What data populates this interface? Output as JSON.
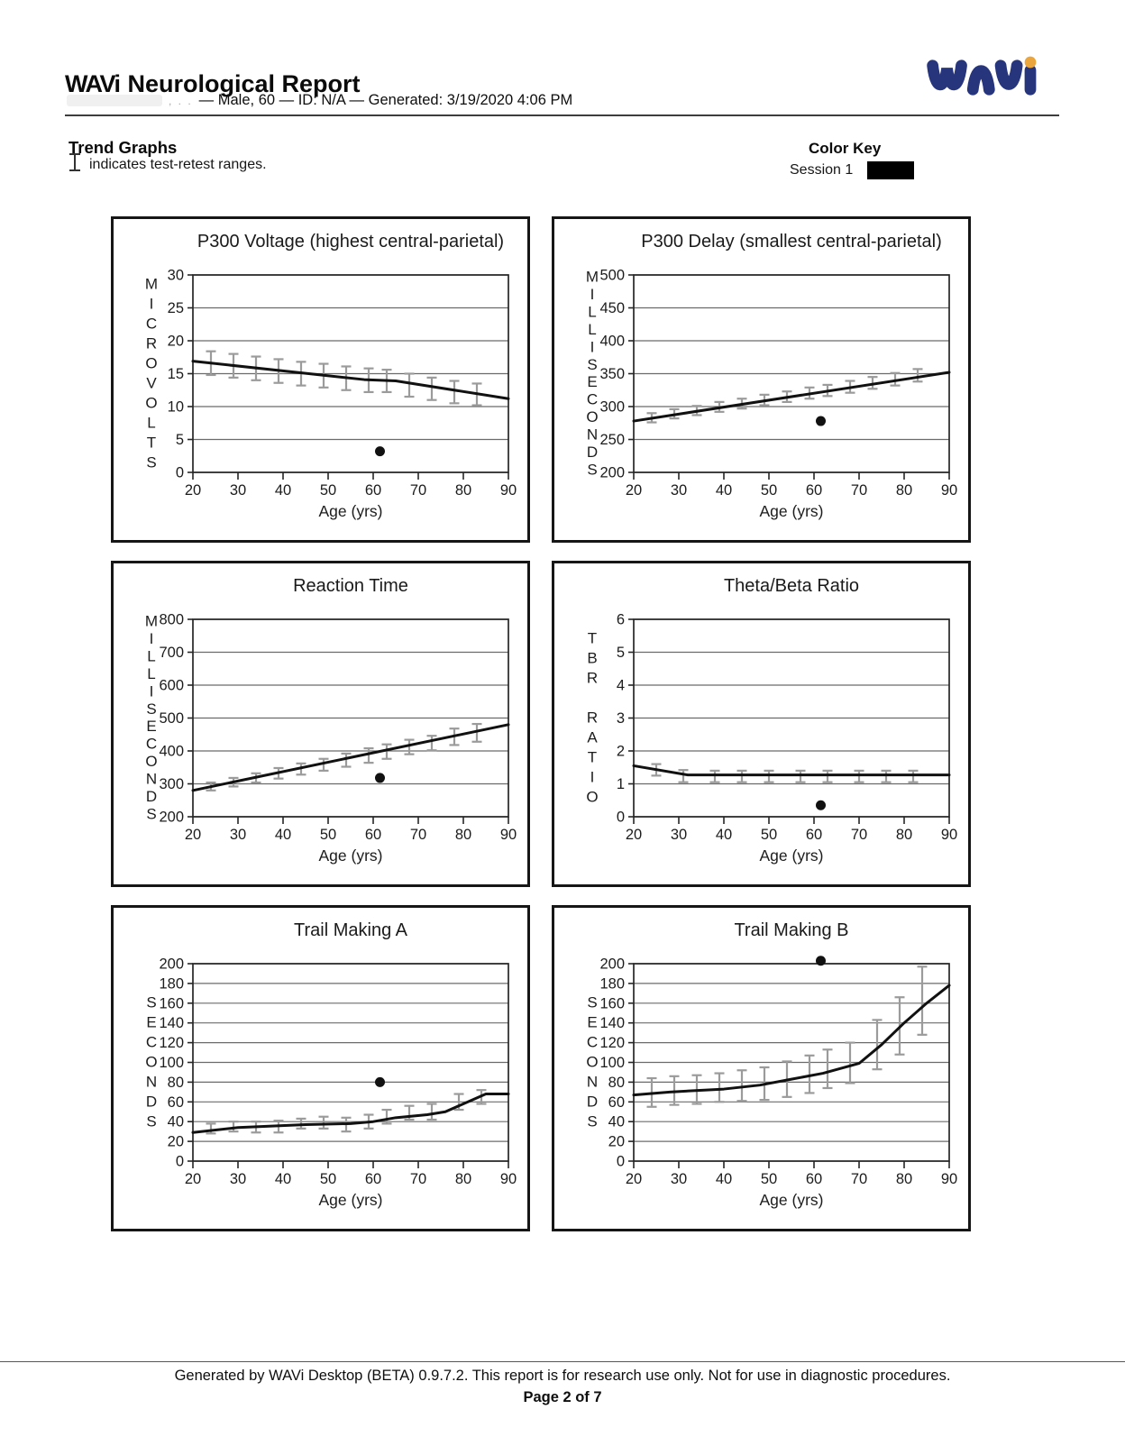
{
  "header": {
    "brand": "WAVi",
    "title": "Neurological Report",
    "redacted_hint": ", . .",
    "patient_line": "— Male, 60 — ID: N/A — Generated: 3/19/2020 4:06 PM"
  },
  "trend_graphs": {
    "heading": "Trend Graphs",
    "legend_note": "indicates test-retest ranges."
  },
  "color_key": {
    "heading": "Color Key",
    "session_label": "Session 1",
    "session_color": "#000000"
  },
  "colors": {
    "trend_line": "#111111",
    "error_bar": "#9b9b9b",
    "grid": "#6b6b6b",
    "axis": "#262626",
    "logo_navy": "#27357c",
    "logo_orange": "#eaa63c"
  },
  "chart_data": [
    {
      "type": "line",
      "title": "P300 Voltage (highest central-parietal)",
      "xlabel": "Age (yrs)",
      "ylabel": "MICROVOLTS",
      "xlim": [
        20,
        90
      ],
      "xticks": [
        20,
        30,
        40,
        50,
        60,
        70,
        80,
        90
      ],
      "ylim": [
        0,
        30
      ],
      "yticks": [
        0,
        5,
        10,
        15,
        20,
        25,
        30
      ],
      "trend": [
        [
          20,
          16.9
        ],
        [
          58,
          14.1
        ],
        [
          65,
          13.9
        ],
        [
          90,
          11.2
        ]
      ],
      "error_bars": [
        [
          24,
          14.8,
          18.4
        ],
        [
          29,
          14.4,
          18.0
        ],
        [
          34,
          14.0,
          17.6
        ],
        [
          39,
          13.6,
          17.2
        ],
        [
          44,
          13.2,
          16.8
        ],
        [
          49,
          12.9,
          16.5
        ],
        [
          54,
          12.5,
          16.1
        ],
        [
          59,
          12.2,
          15.8
        ],
        [
          63,
          12.2,
          15.6
        ],
        [
          68,
          11.5,
          15.0
        ],
        [
          73,
          11.0,
          14.4
        ],
        [
          78,
          10.5,
          13.9
        ],
        [
          83,
          10.2,
          13.5
        ]
      ],
      "session1_point": [
        61.5,
        3.2
      ]
    },
    {
      "type": "line",
      "title": "P300 Delay (smallest central-parietal)",
      "xlabel": "Age (yrs)",
      "ylabel": "MILLISECONDS",
      "xlim": [
        20,
        90
      ],
      "xticks": [
        20,
        30,
        40,
        50,
        60,
        70,
        80,
        90
      ],
      "ylim": [
        200,
        500
      ],
      "yticks": [
        200,
        250,
        300,
        350,
        400,
        450,
        500
      ],
      "trend": [
        [
          20,
          278
        ],
        [
          90,
          352
        ]
      ],
      "error_bars": [
        [
          24,
          276,
          290
        ],
        [
          29,
          282,
          296
        ],
        [
          34,
          287,
          301
        ],
        [
          39,
          292,
          307
        ],
        [
          44,
          297,
          312
        ],
        [
          49,
          302,
          318
        ],
        [
          54,
          307,
          323
        ],
        [
          59,
          312,
          329
        ],
        [
          63,
          316,
          333
        ],
        [
          68,
          321,
          339
        ],
        [
          73,
          327,
          345
        ],
        [
          78,
          332,
          351
        ],
        [
          83,
          338,
          357
        ]
      ],
      "session1_point": [
        61.5,
        278
      ]
    },
    {
      "type": "line",
      "title": "Reaction Time",
      "xlabel": "Age (yrs)",
      "ylabel": "MILLISECONDS",
      "xlim": [
        20,
        90
      ],
      "xticks": [
        20,
        30,
        40,
        50,
        60,
        70,
        80,
        90
      ],
      "ylim": [
        200,
        800
      ],
      "yticks": [
        200,
        300,
        400,
        500,
        600,
        700,
        800
      ],
      "trend": [
        [
          20,
          280
        ],
        [
          90,
          480
        ]
      ],
      "error_bars": [
        [
          24,
          280,
          304
        ],
        [
          29,
          292,
          318
        ],
        [
          34,
          304,
          332
        ],
        [
          39,
          316,
          348
        ],
        [
          44,
          328,
          362
        ],
        [
          49,
          340,
          376
        ],
        [
          54,
          352,
          392
        ],
        [
          59,
          364,
          408
        ],
        [
          63,
          376,
          420
        ],
        [
          68,
          390,
          434
        ],
        [
          73,
          402,
          446
        ],
        [
          78,
          418,
          468
        ],
        [
          83,
          428,
          482
        ]
      ],
      "session1_point": [
        61.5,
        318
      ]
    },
    {
      "type": "line",
      "title": "Theta/Beta Ratio",
      "xlabel": "Age (yrs)",
      "ylabel": "TBR RATIO",
      "xlim": [
        20,
        90
      ],
      "xticks": [
        20,
        30,
        40,
        50,
        60,
        70,
        80,
        90
      ],
      "ylim": [
        0,
        6
      ],
      "yticks": [
        0,
        1,
        2,
        3,
        4,
        5,
        6
      ],
      "trend": [
        [
          20,
          1.55
        ],
        [
          32,
          1.27
        ],
        [
          90,
          1.27
        ]
      ],
      "error_bars": [
        [
          25,
          1.25,
          1.6
        ],
        [
          31,
          1.05,
          1.42
        ],
        [
          38,
          1.05,
          1.4
        ],
        [
          44,
          1.05,
          1.4
        ],
        [
          50,
          1.05,
          1.4
        ],
        [
          57,
          1.05,
          1.4
        ],
        [
          63,
          1.05,
          1.4
        ],
        [
          70,
          1.05,
          1.4
        ],
        [
          76,
          1.05,
          1.4
        ],
        [
          82,
          1.05,
          1.4
        ]
      ],
      "session1_point": [
        61.5,
        0.35
      ]
    },
    {
      "type": "line",
      "title": "Trail Making A",
      "xlabel": "Age (yrs)",
      "ylabel": "SECONDS",
      "xlim": [
        20,
        90
      ],
      "xticks": [
        20,
        30,
        40,
        50,
        60,
        70,
        80,
        90
      ],
      "ylim": [
        0,
        200
      ],
      "yticks": [
        0,
        20,
        40,
        60,
        80,
        100,
        120,
        140,
        160,
        180,
        200
      ],
      "trend": [
        [
          20,
          29
        ],
        [
          30,
          34
        ],
        [
          45,
          37
        ],
        [
          55,
          38
        ],
        [
          60,
          40
        ],
        [
          65,
          44
        ],
        [
          72,
          47
        ],
        [
          76,
          50
        ],
        [
          85,
          68
        ],
        [
          90,
          68
        ]
      ],
      "error_bars": [
        [
          24,
          28,
          38
        ],
        [
          29,
          30,
          40
        ],
        [
          34,
          29,
          40
        ],
        [
          39,
          29,
          41
        ],
        [
          44,
          33,
          43
        ],
        [
          49,
          33,
          45
        ],
        [
          54,
          30,
          44
        ],
        [
          59,
          33,
          47
        ],
        [
          63,
          38,
          52
        ],
        [
          68,
          42,
          56
        ],
        [
          73,
          42,
          58
        ],
        [
          79,
          52,
          68
        ],
        [
          84,
          58,
          72
        ]
      ],
      "session1_point": [
        61.5,
        80
      ]
    },
    {
      "type": "line",
      "title": "Trail Making B",
      "xlabel": "Age (yrs)",
      "ylabel": "SECONDS",
      "xlim": [
        20,
        90
      ],
      "xticks": [
        20,
        30,
        40,
        50,
        60,
        70,
        80,
        90
      ],
      "ylim": [
        0,
        200
      ],
      "yticks": [
        0,
        20,
        40,
        60,
        80,
        100,
        120,
        140,
        160,
        180,
        200
      ],
      "trend": [
        [
          20,
          67
        ],
        [
          28,
          70
        ],
        [
          40,
          73
        ],
        [
          48,
          77
        ],
        [
          55,
          83
        ],
        [
          62,
          89
        ],
        [
          70,
          99
        ],
        [
          75,
          118
        ],
        [
          80,
          140
        ],
        [
          85,
          160
        ],
        [
          90,
          178
        ]
      ],
      "error_bars": [
        [
          24,
          55,
          84
        ],
        [
          29,
          57,
          86
        ],
        [
          34,
          58,
          87
        ],
        [
          39,
          60,
          89
        ],
        [
          44,
          61,
          92
        ],
        [
          49,
          62,
          95
        ],
        [
          54,
          65,
          101
        ],
        [
          59,
          69,
          107
        ],
        [
          63,
          74,
          113
        ],
        [
          68,
          79,
          120
        ],
        [
          74,
          93,
          143
        ],
        [
          79,
          108,
          166
        ],
        [
          84,
          128,
          197
        ]
      ],
      "session1_point": [
        61.5,
        203
      ]
    }
  ],
  "footer": {
    "disclaimer": "Generated by WAVi Desktop (BETA) 0.9.7.2. This report is for research use only. Not for use in diagnostic procedures.",
    "page_label": "Page 2 of 7"
  }
}
